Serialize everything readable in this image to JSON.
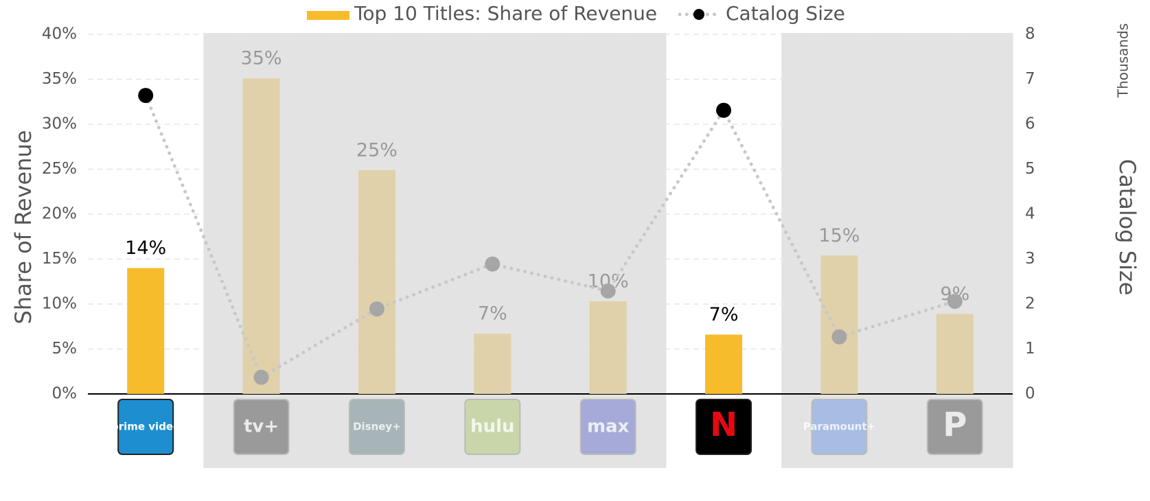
{
  "chart_data": {
    "type": "bar",
    "categories": [
      "prime video",
      "tv+",
      "Disney+",
      "hulu",
      "max",
      "N",
      "Paramount+",
      "P"
    ],
    "highlight": [
      true,
      false,
      false,
      false,
      false,
      true,
      false,
      false
    ],
    "logo_colors": [
      "#1d8fd0",
      "#9a9a9a",
      "#a7b5b8",
      "#c9d6aa",
      "#a5aad8",
      "#000000",
      "#a8bde3",
      "#9a9a9a"
    ],
    "series": [
      {
        "name": "Top 10 Titles: Share of Revenue",
        "type": "bar",
        "color": "#f6bc2c",
        "faded_color": "#e0d1aa",
        "values": [
          14,
          35.1,
          24.9,
          6.7,
          10.3,
          6.6,
          15.4,
          8.9
        ],
        "value_labels": [
          "14%",
          "35%",
          "25%",
          "7%",
          "10%",
          "7%",
          "15%",
          "9%"
        ]
      },
      {
        "name": "Catalog Size",
        "type": "line",
        "axis": "y2",
        "color": "#000000",
        "faded_color": "#a6a6a6",
        "values": [
          6.64,
          0.37,
          1.89,
          2.89,
          2.29,
          6.31,
          1.27,
          2.06
        ]
      }
    ],
    "y_label": "Share of Revenue",
    "y2_label": "Catalog Size",
    "y2_unit": "Thousands",
    "ylim": [
      0,
      40
    ],
    "yticks": [
      {
        "value": 0,
        "label": "0%"
      },
      {
        "value": 5,
        "label": "5%"
      },
      {
        "value": 10,
        "label": "10%"
      },
      {
        "value": 15,
        "label": "15%"
      },
      {
        "value": 20,
        "label": "20%"
      },
      {
        "value": 25,
        "label": "25%"
      },
      {
        "value": 30,
        "label": "30%"
      },
      {
        "value": 35,
        "label": "35%"
      },
      {
        "value": 40,
        "label": "40%"
      }
    ],
    "y2lim": [
      0,
      8
    ],
    "y2ticks": [
      0,
      1,
      2,
      3,
      4,
      5,
      6,
      7,
      8
    ],
    "grid": true
  }
}
